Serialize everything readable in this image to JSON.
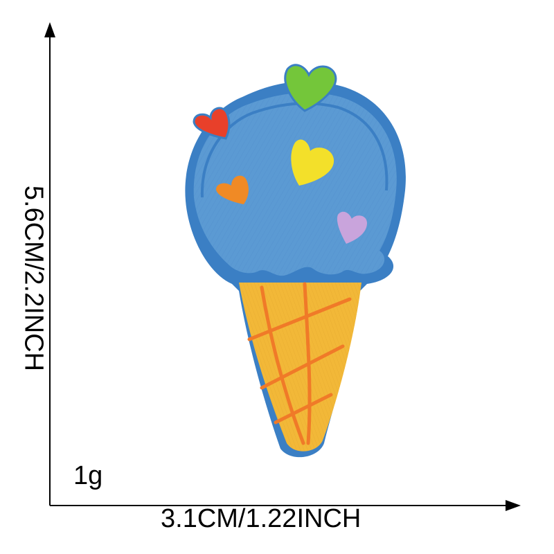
{
  "dimensions": {
    "width_label": "3.1CM/1.22INCH",
    "height_label": "5.6CM/2.2INCH"
  },
  "weight_label": "1g",
  "product": {
    "subject": "ice-cream-cone-embroidered-patch",
    "colors": {
      "scoop": "#5b9ad3",
      "scoop_border": "#3b7fc4",
      "cone": "#f2b838",
      "cone_lines": "#f07a28",
      "heart_green": "#74c63a",
      "heart_red": "#e8402a",
      "heart_yellow": "#f3e02a",
      "heart_orange": "#f08a25",
      "heart_lilac": "#c9a4dc"
    }
  }
}
